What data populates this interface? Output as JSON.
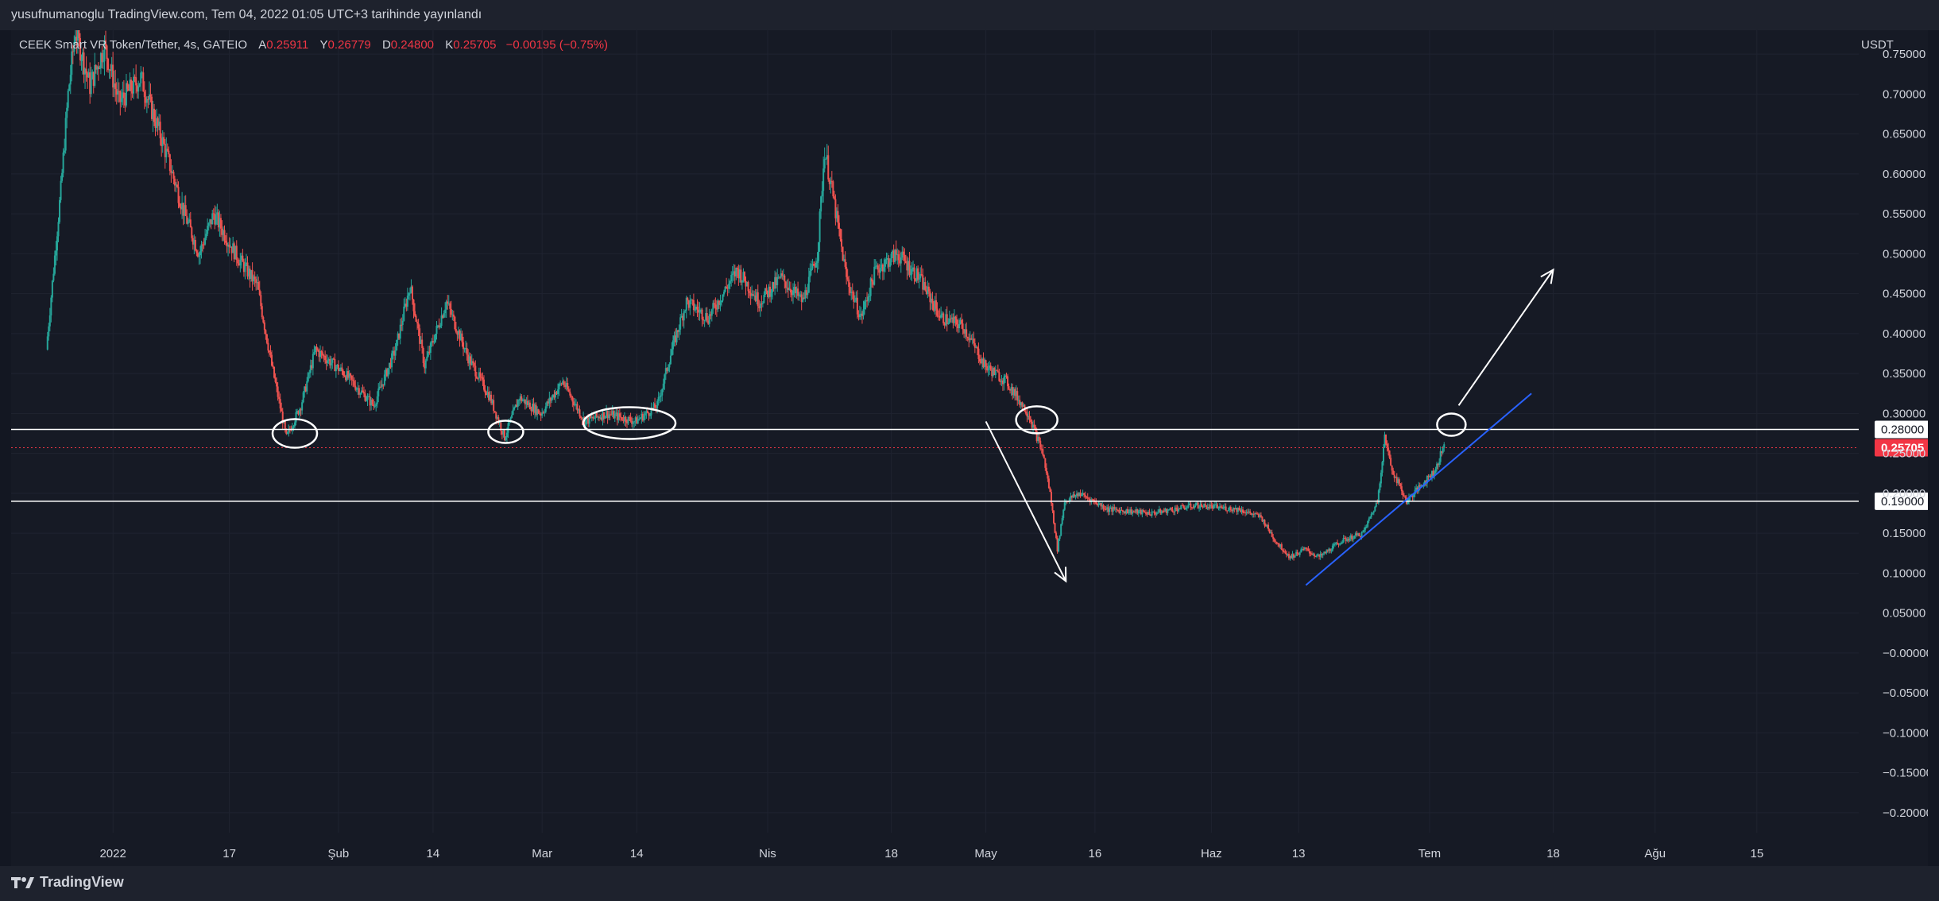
{
  "header": {
    "publish_note": "yusufnumanoglu TradingView.com, Tem 04, 2022 01:05 UTC+3 tarihinde yayınlandı"
  },
  "legend": {
    "symbol": "CEEK Smart VR Token/Tether, 4s, GATEIO",
    "open_label": "A",
    "open": "0.25911",
    "high_label": "Y",
    "high": "0.26779",
    "low_label": "D",
    "low": "0.24800",
    "close_label": "K",
    "close": "0.25705",
    "change": "−0.00195 (−0.75%)"
  },
  "axis": {
    "currency": "USDT"
  },
  "footer": {
    "brand": "TradingView"
  },
  "colors": {
    "background": "#131722",
    "up": "#26a69a",
    "down": "#ef5350",
    "price_tag": "#f23645",
    "trendline": "#2962ff",
    "drawing": "#ffffff"
  },
  "chart_data": {
    "type": "candlestick",
    "symbol": "CEEK Smart VR Token/Tether",
    "interval": "4s",
    "exchange": "GATEIO",
    "y_unit": "USDT",
    "ylim": [
      -0.225,
      0.78
    ],
    "y_ticks": [
      "0.75000",
      "0.70000",
      "0.65000",
      "0.60000",
      "0.55000",
      "0.50000",
      "0.45000",
      "0.40000",
      "0.35000",
      "0.30000",
      "0.25000",
      "0.20000",
      "0.15000",
      "0.10000",
      "0.05000",
      "−0.00000",
      "−0.05000",
      "−0.10000",
      "−0.15000",
      "−0.20000"
    ],
    "x_ticks": [
      {
        "label": "2022",
        "date": "2022-01-01"
      },
      {
        "label": "17",
        "date": "2022-01-17"
      },
      {
        "label": "Şub",
        "date": "2022-02-01"
      },
      {
        "label": "14",
        "date": "2022-02-14"
      },
      {
        "label": "Mar",
        "date": "2022-03-01"
      },
      {
        "label": "14",
        "date": "2022-03-14"
      },
      {
        "label": "Nis",
        "date": "2022-04-01"
      },
      {
        "label": "18",
        "date": "2022-04-18"
      },
      {
        "label": "May",
        "date": "2022-05-01"
      },
      {
        "label": "16",
        "date": "2022-05-16"
      },
      {
        "label": "Haz",
        "date": "2022-06-01"
      },
      {
        "label": "13",
        "date": "2022-06-13"
      },
      {
        "label": "Tem",
        "date": "2022-07-01"
      },
      {
        "label": "18",
        "date": "2022-07-18"
      },
      {
        "label": "Ağu",
        "date": "2022-08-01"
      },
      {
        "label": "15",
        "date": "2022-08-15"
      }
    ],
    "price_path": [
      {
        "date": "2021-12-23",
        "price": 0.38
      },
      {
        "date": "2021-12-25",
        "price": 0.58
      },
      {
        "date": "2021-12-26",
        "price": 0.7
      },
      {
        "date": "2021-12-27",
        "price": 0.78
      },
      {
        "date": "2021-12-29",
        "price": 0.71
      },
      {
        "date": "2021-12-31",
        "price": 0.76
      },
      {
        "date": "2022-01-02",
        "price": 0.69
      },
      {
        "date": "2022-01-05",
        "price": 0.72
      },
      {
        "date": "2022-01-08",
        "price": 0.64
      },
      {
        "date": "2022-01-11",
        "price": 0.55
      },
      {
        "date": "2022-01-13",
        "price": 0.5
      },
      {
        "date": "2022-01-15",
        "price": 0.55
      },
      {
        "date": "2022-01-18",
        "price": 0.5
      },
      {
        "date": "2022-01-21",
        "price": 0.46
      },
      {
        "date": "2022-01-23",
        "price": 0.36
      },
      {
        "date": "2022-01-25",
        "price": 0.27
      },
      {
        "date": "2022-01-27",
        "price": 0.31
      },
      {
        "date": "2022-01-29",
        "price": 0.38
      },
      {
        "date": "2022-02-02",
        "price": 0.35
      },
      {
        "date": "2022-02-06",
        "price": 0.31
      },
      {
        "date": "2022-02-09",
        "price": 0.38
      },
      {
        "date": "2022-02-11",
        "price": 0.46
      },
      {
        "date": "2022-02-13",
        "price": 0.36
      },
      {
        "date": "2022-02-16",
        "price": 0.44
      },
      {
        "date": "2022-02-19",
        "price": 0.37
      },
      {
        "date": "2022-02-22",
        "price": 0.32
      },
      {
        "date": "2022-02-24",
        "price": 0.27
      },
      {
        "date": "2022-02-26",
        "price": 0.32
      },
      {
        "date": "2022-03-01",
        "price": 0.3
      },
      {
        "date": "2022-03-04",
        "price": 0.34
      },
      {
        "date": "2022-03-07",
        "price": 0.29
      },
      {
        "date": "2022-03-10",
        "price": 0.3
      },
      {
        "date": "2022-03-14",
        "price": 0.29
      },
      {
        "date": "2022-03-17",
        "price": 0.31
      },
      {
        "date": "2022-03-19",
        "price": 0.38
      },
      {
        "date": "2022-03-21",
        "price": 0.44
      },
      {
        "date": "2022-03-24",
        "price": 0.42
      },
      {
        "date": "2022-03-28",
        "price": 0.48
      },
      {
        "date": "2022-03-31",
        "price": 0.44
      },
      {
        "date": "2022-04-03",
        "price": 0.47
      },
      {
        "date": "2022-04-06",
        "price": 0.44
      },
      {
        "date": "2022-04-08",
        "price": 0.5
      },
      {
        "date": "2022-04-09",
        "price": 0.63
      },
      {
        "date": "2022-04-10",
        "price": 0.58
      },
      {
        "date": "2022-04-12",
        "price": 0.47
      },
      {
        "date": "2022-04-14",
        "price": 0.42
      },
      {
        "date": "2022-04-16",
        "price": 0.48
      },
      {
        "date": "2022-04-19",
        "price": 0.5
      },
      {
        "date": "2022-04-22",
        "price": 0.47
      },
      {
        "date": "2022-04-25",
        "price": 0.42
      },
      {
        "date": "2022-04-28",
        "price": 0.41
      },
      {
        "date": "2022-05-01",
        "price": 0.36
      },
      {
        "date": "2022-05-04",
        "price": 0.34
      },
      {
        "date": "2022-05-07",
        "price": 0.3
      },
      {
        "date": "2022-05-09",
        "price": 0.25
      },
      {
        "date": "2022-05-10",
        "price": 0.2
      },
      {
        "date": "2022-05-11",
        "price": 0.13
      },
      {
        "date": "2022-05-12",
        "price": 0.19
      },
      {
        "date": "2022-05-14",
        "price": 0.2
      },
      {
        "date": "2022-05-18",
        "price": 0.18
      },
      {
        "date": "2022-05-24",
        "price": 0.175
      },
      {
        "date": "2022-05-30",
        "price": 0.185
      },
      {
        "date": "2022-06-05",
        "price": 0.18
      },
      {
        "date": "2022-06-08",
        "price": 0.17
      },
      {
        "date": "2022-06-10",
        "price": 0.14
      },
      {
        "date": "2022-06-12",
        "price": 0.12
      },
      {
        "date": "2022-06-14",
        "price": 0.13
      },
      {
        "date": "2022-06-16",
        "price": 0.12
      },
      {
        "date": "2022-06-19",
        "price": 0.14
      },
      {
        "date": "2022-06-22",
        "price": 0.15
      },
      {
        "date": "2022-06-24",
        "price": 0.19
      },
      {
        "date": "2022-06-25",
        "price": 0.27
      },
      {
        "date": "2022-06-26",
        "price": 0.23
      },
      {
        "date": "2022-06-28",
        "price": 0.19
      },
      {
        "date": "2022-06-30",
        "price": 0.21
      },
      {
        "date": "2022-07-02",
        "price": 0.23
      },
      {
        "date": "2022-07-03",
        "price": 0.257
      }
    ],
    "horizontal_levels": [
      {
        "price": 0.28,
        "label": "0.28000",
        "style": "solid"
      },
      {
        "price": 0.19,
        "label": "0.19000",
        "style": "solid"
      },
      {
        "price": 0.25705,
        "label": "0.25705",
        "style": "dotted-current-price"
      }
    ],
    "current_price": 0.25705,
    "trendline": {
      "start": {
        "date": "2022-06-14",
        "price": 0.085
      },
      "end": {
        "date": "2022-07-15",
        "price": 0.325
      }
    },
    "annotations": {
      "circles": [
        {
          "date": "2022-01-26",
          "price": 0.275
        },
        {
          "date": "2022-02-24",
          "price": 0.277
        },
        {
          "date": "2022-03-13",
          "price": 0.288
        },
        {
          "date": "2022-05-08",
          "price": 0.292
        },
        {
          "date": "2022-07-04",
          "price": 0.286
        }
      ],
      "arrows": [
        {
          "from": {
            "date": "2022-05-01",
            "price": 0.29
          },
          "to": {
            "date": "2022-05-12",
            "price": 0.09
          }
        },
        {
          "from": {
            "date": "2022-07-05",
            "price": 0.31
          },
          "to": {
            "date": "2022-07-18",
            "price": 0.48
          }
        }
      ]
    },
    "grid": true,
    "legend_position": "top-left"
  }
}
